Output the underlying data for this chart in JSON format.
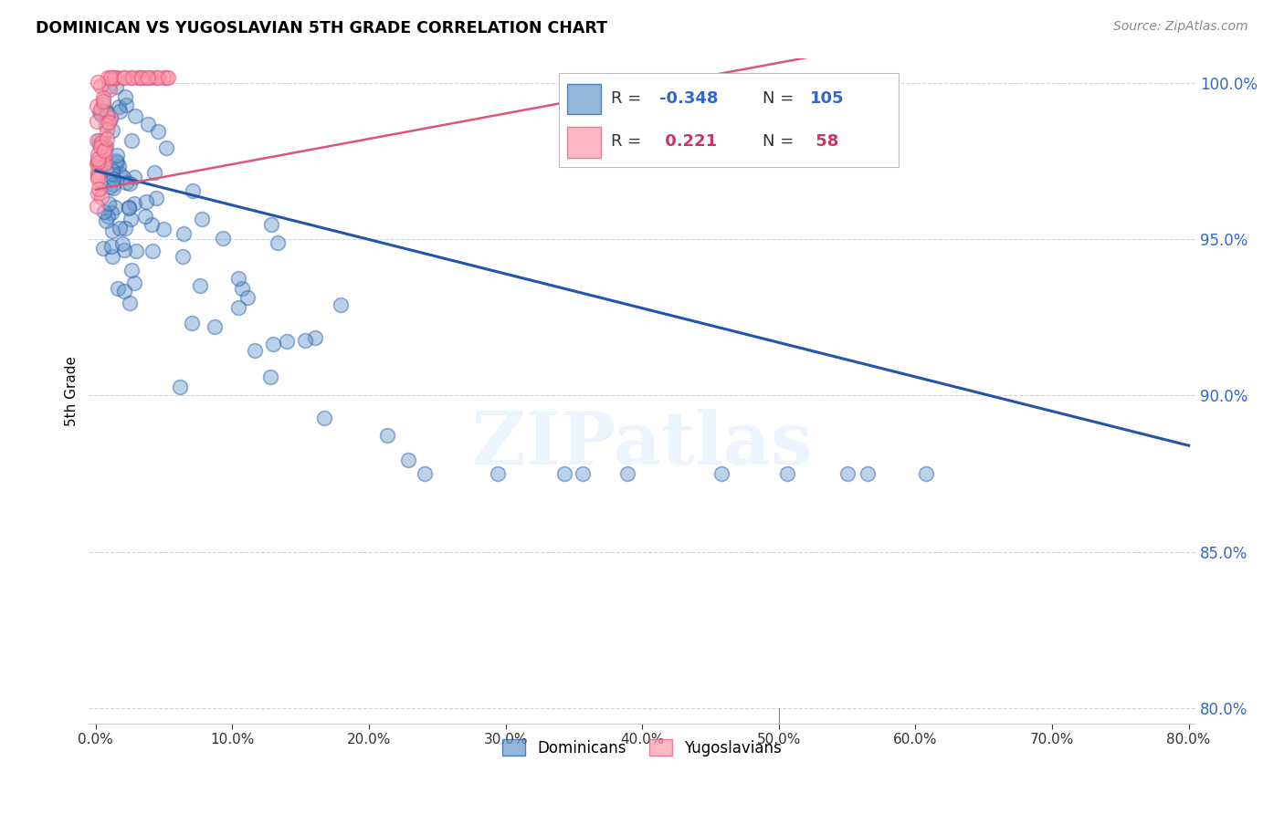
{
  "title": "DOMINICAN VS YUGOSLAVIAN 5TH GRADE CORRELATION CHART",
  "source": "Source: ZipAtlas.com",
  "ylabel": "5th Grade",
  "y_ticks": [
    0.8,
    0.85,
    0.9,
    0.95,
    1.0
  ],
  "x_ticks": [
    0.0,
    0.1,
    0.2,
    0.3,
    0.4,
    0.5,
    0.6,
    0.7,
    0.8
  ],
  "x_lim": [
    -0.005,
    0.805
  ],
  "y_lim": [
    0.795,
    1.008
  ],
  "dominican_R": -0.348,
  "dominican_N": 105,
  "yugoslavian_R": 0.221,
  "yugoslavian_N": 58,
  "blue_color": "#6699CC",
  "pink_color": "#FF99AA",
  "blue_line_color": "#2255AA",
  "pink_line_color": "#DD5577",
  "watermark": "ZIPatlas",
  "legend_color": "#3366CC",
  "legend_pink_color": "#CC3366"
}
